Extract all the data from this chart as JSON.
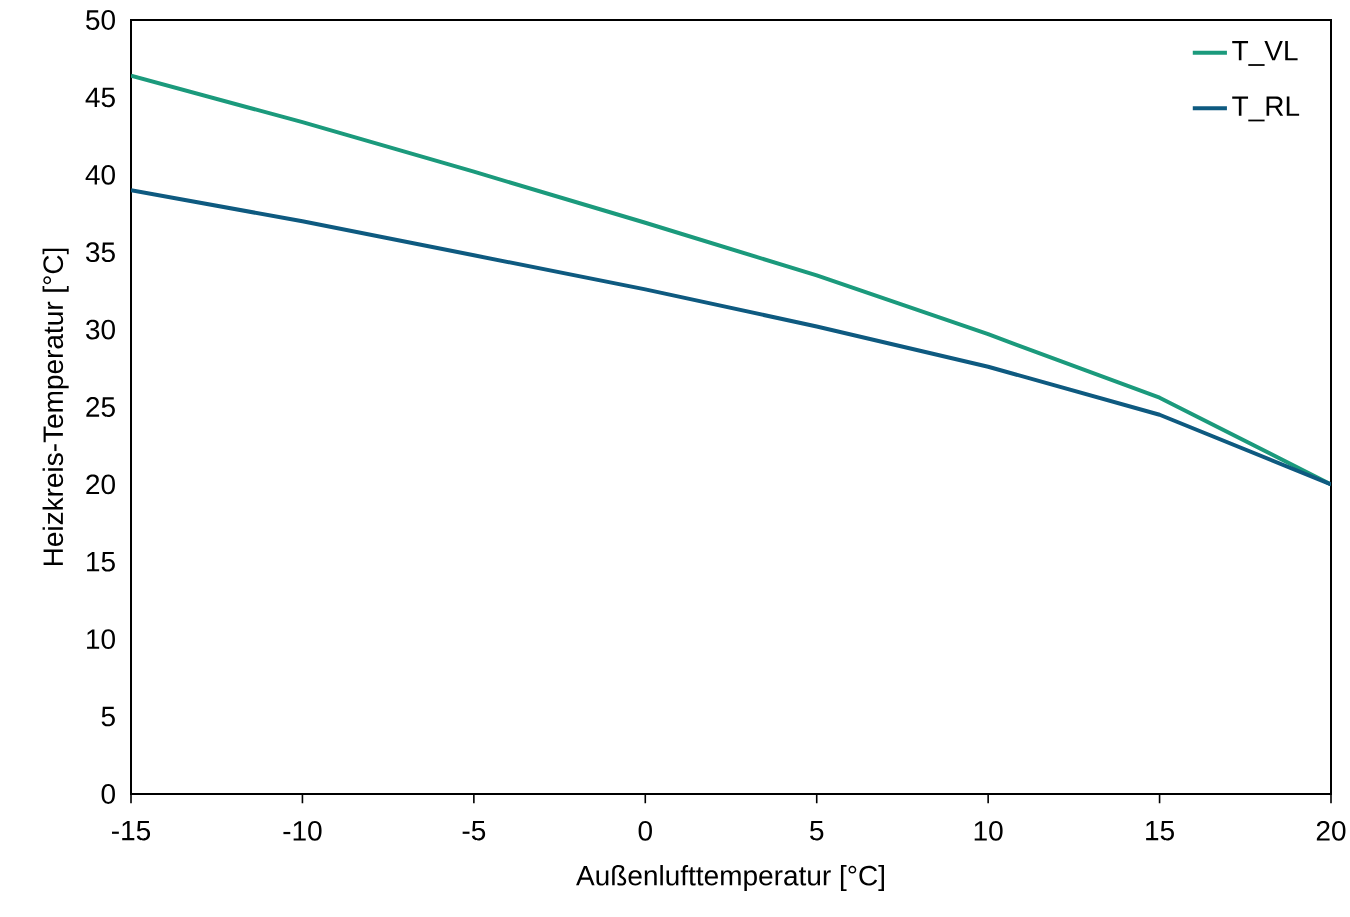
{
  "chart_data": {
    "type": "line",
    "xlabel": "Außenlufttemperatur  [°C]",
    "ylabel": "Heizkreis-Temperatur  [°C]",
    "x": [
      -15,
      -10,
      -5,
      0,
      5,
      10,
      15,
      20
    ],
    "series": [
      {
        "name": "T_VL",
        "color": "#1b9a7c",
        "values": [
          46.4,
          43.4,
          40.2,
          36.9,
          33.5,
          29.7,
          25.6,
          20.0
        ]
      },
      {
        "name": "T_RL",
        "color": "#0e5a80",
        "values": [
          39.0,
          37.0,
          34.8,
          32.6,
          30.2,
          27.6,
          24.5,
          20.0
        ]
      }
    ],
    "xlim": [
      -15,
      20
    ],
    "ylim": [
      0,
      50
    ],
    "xticks": [
      -15,
      -10,
      -5,
      0,
      5,
      10,
      15,
      20
    ],
    "yticks": [
      0,
      5,
      10,
      15,
      20,
      25,
      30,
      35,
      40,
      45,
      50
    ],
    "grid": false,
    "legend": "top right",
    "marker": "none",
    "line_style": "solid"
  }
}
